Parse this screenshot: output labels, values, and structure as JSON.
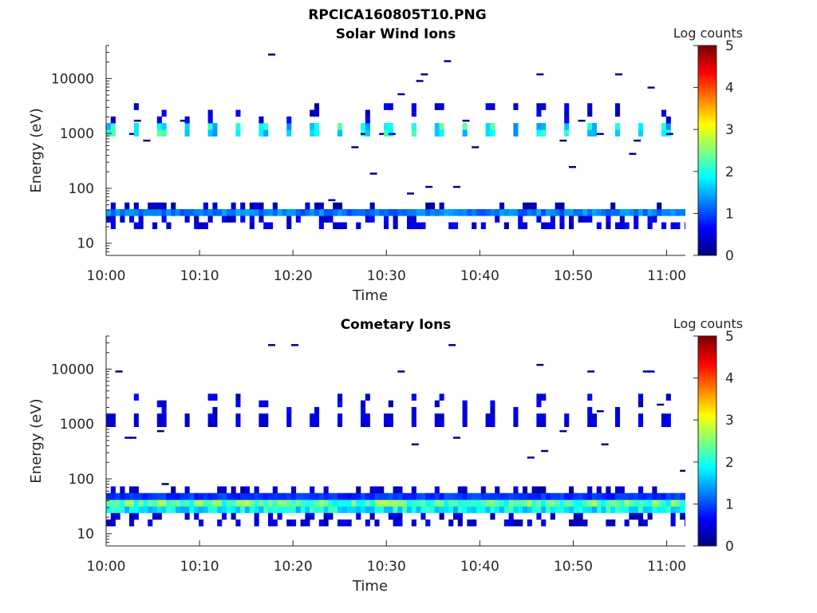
{
  "figure": {
    "title": "RPCICA160805T10.PNG"
  },
  "chart_data": [
    {
      "type": "heatmap",
      "title": "Solar Wind Ions",
      "xlabel": "Time",
      "ylabel": "Energy (eV)",
      "x_ticks": [
        "10:00",
        "10:10",
        "10:20",
        "10:30",
        "10:40",
        "10:50",
        "11:00"
      ],
      "y_ticks": [
        "10",
        "100",
        "1000",
        "10000"
      ],
      "y_scale": "log",
      "ylim": [
        6,
        40000
      ],
      "xlim_minutes": [
        0,
        62
      ],
      "colorbar": {
        "label": "Log counts",
        "range": [
          0,
          5
        ],
        "ticks": [
          "0",
          "1",
          "2",
          "3",
          "4",
          "5"
        ],
        "colormap": "jet"
      },
      "band_low": {
        "energy_eV": [
          28,
          40
        ],
        "peak_log_counts": 2.0,
        "description_level": "continuous"
      },
      "band_high": {
        "energy_eV": [
          800,
          1500
        ],
        "peak_log_counts": 2.4,
        "pulse_period_min": 2.7
      }
    },
    {
      "type": "heatmap",
      "title": "Cometary Ions",
      "xlabel": "Time",
      "ylabel": "Energy (eV)",
      "x_ticks": [
        "10:00",
        "10:10",
        "10:20",
        "10:30",
        "10:40",
        "10:50",
        "11:00"
      ],
      "y_ticks": [
        "10",
        "100",
        "1000",
        "10000"
      ],
      "y_scale": "log",
      "ylim": [
        6,
        40000
      ],
      "xlim_minutes": [
        0,
        62
      ],
      "colorbar": {
        "label": "Log counts",
        "range": [
          0,
          5
        ],
        "ticks": [
          "0",
          "1",
          "2",
          "3",
          "4",
          "5"
        ],
        "colormap": "jet"
      },
      "band_low": {
        "energy_eV": [
          22,
          50
        ],
        "peak_log_counts": 2.9,
        "description_level": "continuous"
      },
      "band_high": {
        "energy_eV": [
          900,
          1400
        ],
        "peak_log_counts": 0.6,
        "pulse_period_min": 2.7
      }
    }
  ]
}
